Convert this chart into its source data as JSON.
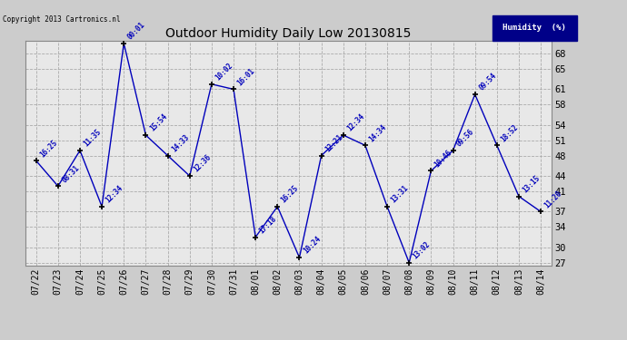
{
  "title": "Outdoor Humidity Daily Low 20130815",
  "background_color": "#cccccc",
  "plot_bg_color": "#e8e8e8",
  "line_color": "#0000bb",
  "marker_color": "#000000",
  "text_color": "#0000bb",
  "legend_label": "Humidity  (%)",
  "legend_bg": "#000088",
  "legend_text_color": "#ffffff",
  "copyright_text": "Copyright 2013 Cartronics.nl",
  "ylim": [
    27,
    70
  ],
  "yticks": [
    27,
    30,
    34,
    37,
    41,
    44,
    48,
    51,
    54,
    58,
    61,
    65,
    68
  ],
  "dates": [
    "07/22",
    "07/23",
    "07/24",
    "07/25",
    "07/26",
    "07/27",
    "07/28",
    "07/29",
    "07/30",
    "07/31",
    "08/01",
    "08/02",
    "08/03",
    "08/04",
    "08/05",
    "08/06",
    "08/07",
    "08/08",
    "08/09",
    "08/10",
    "08/11",
    "08/12",
    "08/13",
    "08/14"
  ],
  "values": [
    47,
    42,
    49,
    38,
    70,
    52,
    48,
    44,
    62,
    61,
    32,
    38,
    28,
    48,
    52,
    50,
    38,
    27,
    45,
    49,
    60,
    50,
    40,
    37
  ],
  "labels": [
    "16:25",
    "08:31",
    "11:35",
    "12:34",
    "00:01",
    "15:54",
    "14:33",
    "12:36",
    "10:02",
    "16:01",
    "17:18",
    "16:25",
    "10:24",
    "12:21",
    "12:34",
    "14:34",
    "13:31",
    "13:02",
    "10:46",
    "09:56",
    "09:54",
    "18:52",
    "13:15",
    "11:20"
  ]
}
